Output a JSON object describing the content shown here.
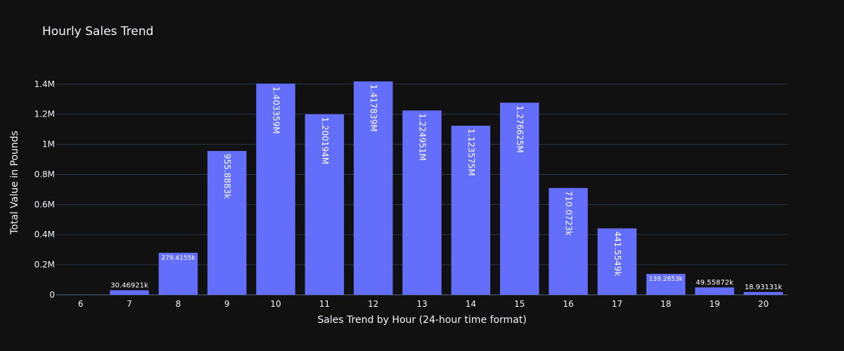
{
  "chart_data": {
    "type": "bar",
    "title": "Hourly Sales Trend",
    "xlabel": "Sales Trend by Hour (24-hour time format)",
    "ylabel": "Total Value in Pounds",
    "categories": [
      "6",
      "7",
      "8",
      "9",
      "10",
      "11",
      "12",
      "13",
      "14",
      "15",
      "16",
      "17",
      "18",
      "19",
      "20"
    ],
    "values": [
      0,
      30469.21,
      279415.5,
      955888.3,
      1403359,
      1200194,
      1417839,
      1224951,
      1123575,
      1276625,
      710072.3,
      441554.9,
      139285.3,
      49558.72,
      18931.31
    ],
    "data_labels": [
      "",
      "30.46921k",
      "279.4155k",
      "955.8883k",
      "1.403359M",
      "1.200194M",
      "1.417839M",
      "1.224951M",
      "1.123575M",
      "1.276625M",
      "710.0723k",
      "441.5549k",
      "139.2853k",
      "49.55872k",
      "18.93131k"
    ],
    "ylim": [
      0,
      1492462
    ],
    "y_ticks": [
      0,
      200000,
      400000,
      600000,
      800000,
      1000000,
      1200000,
      1400000
    ],
    "y_tick_labels": [
      "0",
      "0.2M",
      "0.4M",
      "0.6M",
      "0.8M",
      "1M",
      "1.2M",
      "1.4M"
    ],
    "bar_color": "#636efa",
    "background": "#111111",
    "grid": true
  }
}
